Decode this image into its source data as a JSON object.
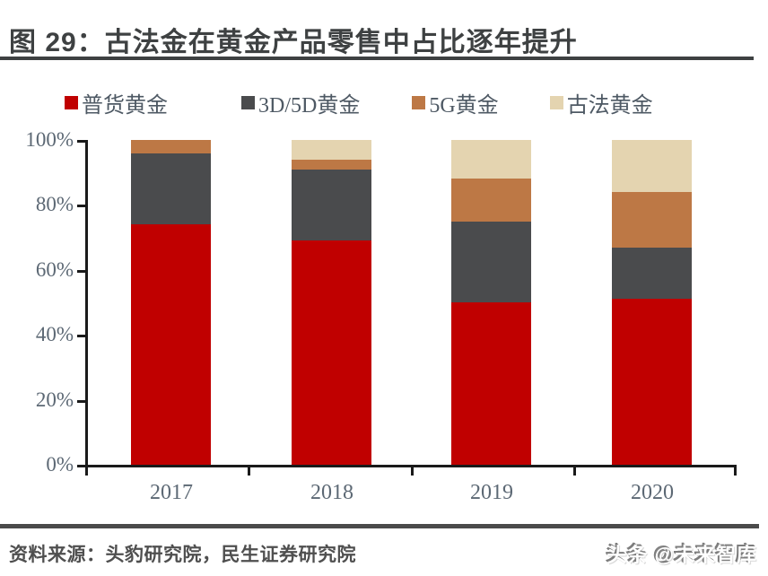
{
  "header": {
    "title": "图 29：古法金在黄金产品零售中占比逐年提升"
  },
  "chart_data": {
    "type": "bar",
    "stacked": true,
    "title": "图 29：古法金在黄金产品零售中占比逐年提升",
    "categories": [
      "2017",
      "2018",
      "2019",
      "2020"
    ],
    "series": [
      {
        "name": "普货黄金",
        "color": "#C00000",
        "values": [
          74,
          69,
          50,
          51
        ]
      },
      {
        "name": "3D/5D黄金",
        "color": "#4A4B4D",
        "values": [
          22,
          22,
          25,
          16
        ]
      },
      {
        "name": "5G黄金",
        "color": "#BD7845",
        "values": [
          4,
          3,
          13,
          17
        ]
      },
      {
        "name": "古法黄金",
        "color": "#E4D4B0",
        "values": [
          0,
          6,
          12,
          16
        ]
      }
    ],
    "xlabel": "",
    "ylabel": "",
    "ylim": [
      0,
      100
    ],
    "yticks": [
      "0%",
      "20%",
      "40%",
      "60%",
      "80%",
      "100%"
    ],
    "grid": false,
    "legend_position": "top",
    "axis_color": "#1a1a1a",
    "tick_label_color": "#5c6874"
  },
  "footer": {
    "source": "资料来源：头豹研究院，民生证券研究院",
    "watermark": "头条 @未来智库"
  }
}
